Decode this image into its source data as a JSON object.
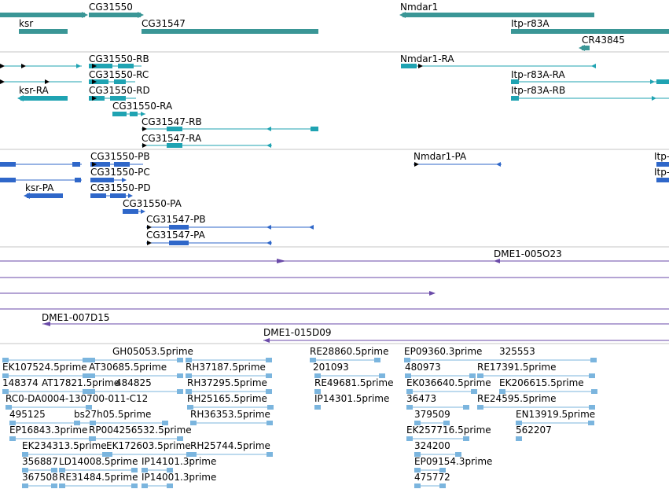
{
  "colors": {
    "gene": "#3a9696",
    "transcript": "#1fa3b2",
    "cds": "#2f67c9",
    "clone": "#6a4aa8",
    "est": "#7bb5de",
    "divider": "#c4c4c4"
  },
  "genes": [
    {
      "id": "g-ksr",
      "label": "ksr"
    },
    {
      "id": "g-cg31550",
      "label": "CG31550"
    },
    {
      "id": "g-cg31547",
      "label": "CG31547"
    },
    {
      "id": "g-nmdar1",
      "label": "Nmdar1"
    },
    {
      "id": "g-ltp-r83a",
      "label": "Itp-r83A"
    },
    {
      "id": "g-cr43845",
      "label": "CR43845"
    }
  ],
  "transcripts": [
    {
      "id": "t-cg31550-rb",
      "label": "CG31550-RB"
    },
    {
      "id": "t-cg31550-rc",
      "label": "CG31550-RC"
    },
    {
      "id": "t-ksr-ra",
      "label": "ksr-RA"
    },
    {
      "id": "t-cg31550-rd",
      "label": "CG31550-RD"
    },
    {
      "id": "t-cg31550-ra",
      "label": "CG31550-RA"
    },
    {
      "id": "t-cg31547-rb",
      "label": "CG31547-RB"
    },
    {
      "id": "t-cg31547-ra",
      "label": "CG31547-RA"
    },
    {
      "id": "t-nmdar1-ra",
      "label": "Nmdar1-RA"
    },
    {
      "id": "t-ltp-r83a-ra",
      "label": "Itp-r83A-RA"
    },
    {
      "id": "t-ltp-r83a-rb",
      "label": "Itp-r83A-RB"
    }
  ],
  "proteins": [
    {
      "id": "p-cg31550-pb",
      "label": "CG31550-PB"
    },
    {
      "id": "p-cg31550-pc",
      "label": "CG31550-PC"
    },
    {
      "id": "p-ksr-pa",
      "label": "ksr-PA"
    },
    {
      "id": "p-cg31550-pd",
      "label": "CG31550-PD"
    },
    {
      "id": "p-cg31550-pa",
      "label": "CG31550-PA"
    },
    {
      "id": "p-cg31547-pb",
      "label": "CG31547-PB"
    },
    {
      "id": "p-cg31547-pa",
      "label": "CG31547-PA"
    },
    {
      "id": "p-nmdar1-pa",
      "label": "Nmdar1-PA"
    },
    {
      "id": "p-ltp-1",
      "label": "Itp-"
    },
    {
      "id": "p-ltp-2",
      "label": "Itp-"
    }
  ],
  "clones": [
    {
      "id": "c-dme1-005o23",
      "label": "DME1-005O23"
    },
    {
      "id": "c-dme1-007d15",
      "label": "DME1-007D15"
    },
    {
      "id": "c-dme1-015d09",
      "label": "DME1-015D09"
    }
  ],
  "ests": [
    "GH05053.5prime",
    "EK107524.5prime",
    "AT30685.5prime",
    "RH37187.5prime",
    "148374",
    "AT17821.5prime",
    "484825",
    "RH37295.5prime",
    "RC0-DA0004-130700-011-C12",
    "RH25165.5prime",
    "495125",
    "bs27h05.5prime",
    "RH36353.5prime",
    "EP16843.3prime",
    "RP004256532.5prime",
    "EK234313.5prime",
    "EK172603.5prime",
    "RH25744.5prime",
    "356887",
    "LD14008.5prime",
    "IP14101.3prime",
    "367508",
    "RE31484.5prime",
    "IP14001.3prime",
    "RE28860.5prime",
    "201093",
    "RE49681.5prime",
    "IP14301.5prime",
    "EP09360.3prime",
    "325553",
    "480973",
    "RE17391.5prime",
    "EK036640.5prime",
    "EK206615.5prime",
    "36473",
    "RE24595.5prime",
    "379509",
    "EN13919.5prime",
    "EK257716.5prime",
    "562207",
    "324200",
    "EP09154.3prime",
    "475772"
  ]
}
